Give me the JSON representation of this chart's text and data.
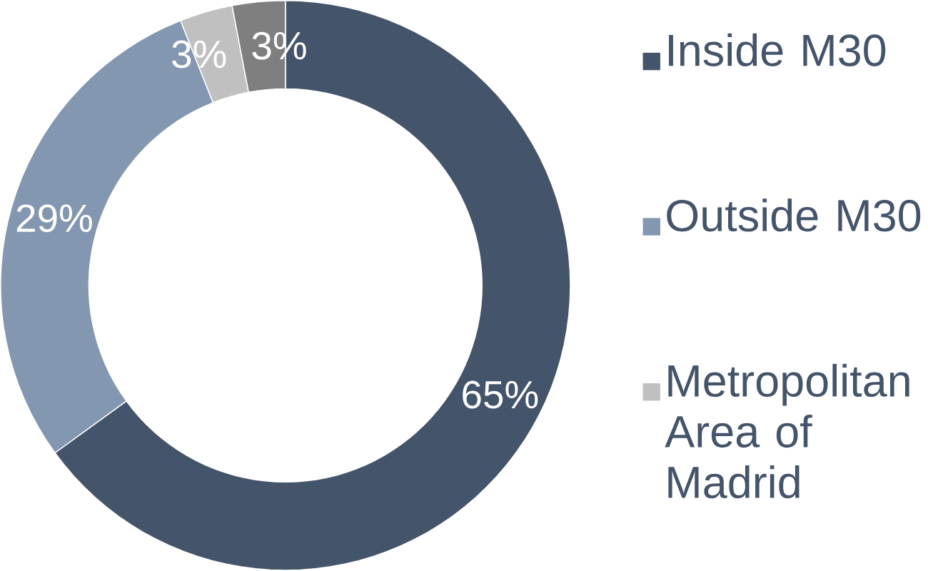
{
  "chart_data": {
    "type": "donut",
    "categories": [
      "Inside M30",
      "Outside M30",
      "Metropolitan Area of Madrid",
      null
    ],
    "values": [
      65,
      29,
      3,
      3
    ],
    "colors": [
      "#44546a",
      "#8497b0",
      "#c0c0c0",
      "#7f7f7f"
    ],
    "value_labels": [
      "65%",
      "29%",
      "3%",
      "3%"
    ],
    "legend": "right"
  }
}
